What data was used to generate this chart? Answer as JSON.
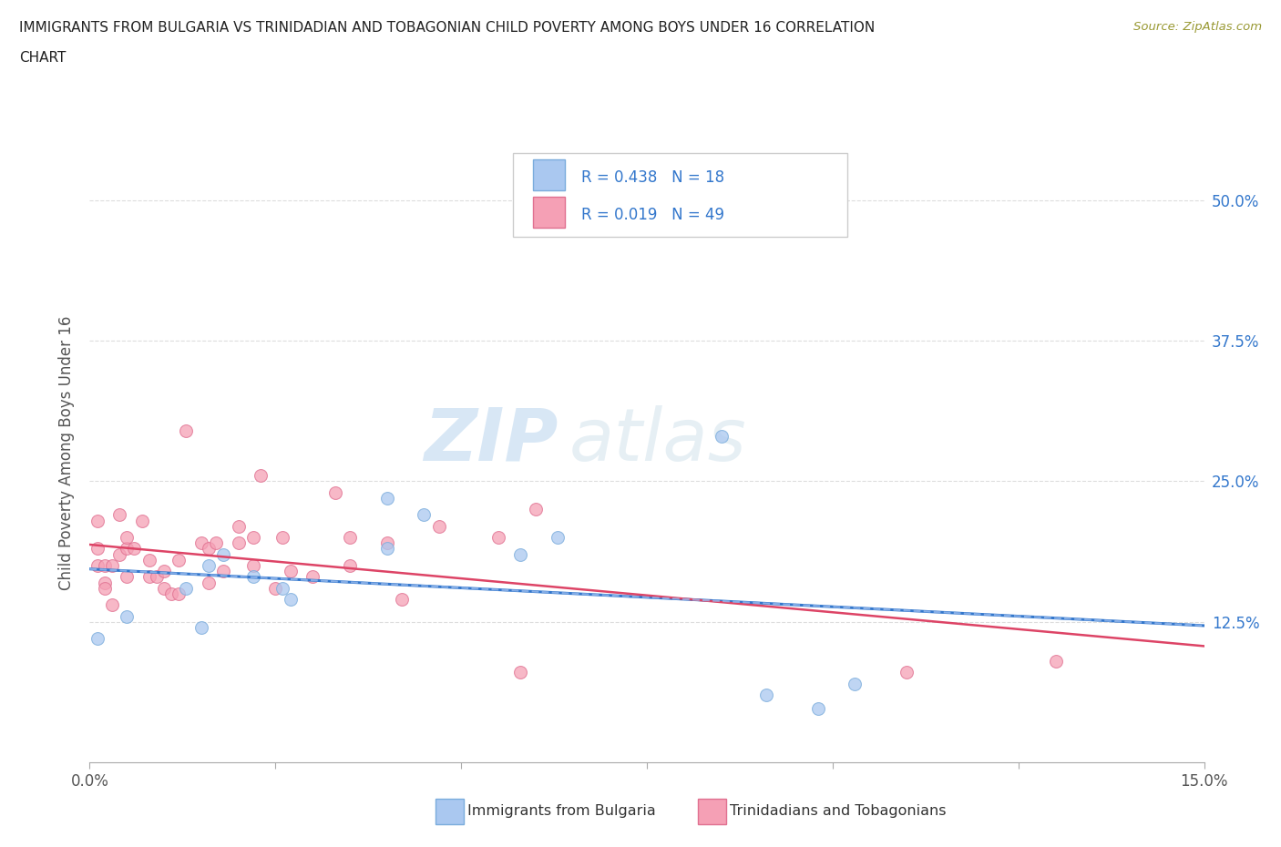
{
  "title_line1": "IMMIGRANTS FROM BULGARIA VS TRINIDADIAN AND TOBAGONIAN CHILD POVERTY AMONG BOYS UNDER 16 CORRELATION",
  "title_line2": "CHART",
  "source": "Source: ZipAtlas.com",
  "ylabel": "Child Poverty Among Boys Under 16",
  "xlim": [
    0.0,
    0.15
  ],
  "ylim": [
    0.0,
    0.55
  ],
  "ytick_labels": [
    "12.5%",
    "25.0%",
    "37.5%",
    "50.0%"
  ],
  "yticks": [
    0.125,
    0.25,
    0.375,
    0.5
  ],
  "bulgaria_color": "#aac8f0",
  "trinidad_color": "#f5a0b5",
  "bulgaria_edge_color": "#7aacdc",
  "trinidad_edge_color": "#e07090",
  "trend_bulgaria_color": "#3377cc",
  "trend_trinidad_color": "#dd4466",
  "trend_dashed_color": "#99bbee",
  "R_bulgaria": 0.438,
  "N_bulgaria": 18,
  "R_trinidad": 0.019,
  "N_trinidad": 49,
  "legend_label_bulgaria": "Immigrants from Bulgaria",
  "legend_label_trinidad": "Trinidadians and Tobagonians",
  "watermark1": "ZIP",
  "watermark2": "atlas",
  "bulgaria_x": [
    0.001,
    0.005,
    0.013,
    0.015,
    0.016,
    0.018,
    0.022,
    0.026,
    0.027,
    0.04,
    0.04,
    0.045,
    0.058,
    0.063,
    0.085,
    0.091,
    0.103,
    0.098
  ],
  "bulgaria_y": [
    0.11,
    0.13,
    0.155,
    0.12,
    0.175,
    0.185,
    0.165,
    0.155,
    0.145,
    0.235,
    0.19,
    0.22,
    0.185,
    0.2,
    0.29,
    0.06,
    0.07,
    0.048
  ],
  "trinidad_x": [
    0.001,
    0.001,
    0.001,
    0.002,
    0.002,
    0.002,
    0.003,
    0.003,
    0.004,
    0.004,
    0.005,
    0.005,
    0.005,
    0.006,
    0.007,
    0.008,
    0.008,
    0.009,
    0.01,
    0.01,
    0.011,
    0.012,
    0.012,
    0.013,
    0.015,
    0.016,
    0.016,
    0.017,
    0.018,
    0.02,
    0.02,
    0.022,
    0.022,
    0.023,
    0.025,
    0.026,
    0.027,
    0.03,
    0.033,
    0.035,
    0.035,
    0.04,
    0.042,
    0.047,
    0.055,
    0.058,
    0.06,
    0.11,
    0.13
  ],
  "trinidad_y": [
    0.215,
    0.19,
    0.175,
    0.16,
    0.175,
    0.155,
    0.14,
    0.175,
    0.22,
    0.185,
    0.19,
    0.2,
    0.165,
    0.19,
    0.215,
    0.18,
    0.165,
    0.165,
    0.155,
    0.17,
    0.15,
    0.18,
    0.15,
    0.295,
    0.195,
    0.19,
    0.16,
    0.195,
    0.17,
    0.21,
    0.195,
    0.175,
    0.2,
    0.255,
    0.155,
    0.2,
    0.17,
    0.165,
    0.24,
    0.2,
    0.175,
    0.195,
    0.145,
    0.21,
    0.2,
    0.08,
    0.225,
    0.08,
    0.09
  ],
  "marker_size": 100,
  "alpha": 0.75,
  "background_color": "#ffffff",
  "grid_color": "#dddddd",
  "legend_text_color": "#3377cc",
  "tick_label_color": "#3377cc"
}
